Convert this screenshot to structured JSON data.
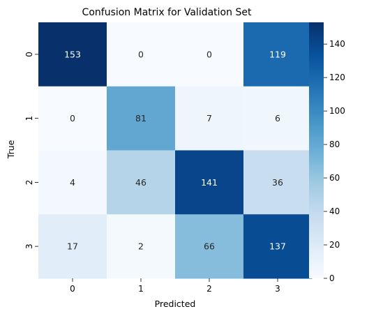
{
  "chart_data": {
    "type": "heatmap",
    "title": "Confusion Matrix for Validation Set",
    "xlabel": "Predicted",
    "ylabel": "True",
    "x_categories": [
      "0",
      "1",
      "2",
      "3"
    ],
    "y_categories": [
      "0",
      "1",
      "2",
      "3"
    ],
    "values": [
      [
        153,
        0,
        0,
        119
      ],
      [
        0,
        81,
        7,
        6
      ],
      [
        4,
        46,
        141,
        36
      ],
      [
        17,
        2,
        66,
        137
      ]
    ],
    "colormap": "Blues",
    "color_range": [
      0,
      153
    ],
    "colorbar": {
      "ticks": [
        0,
        20,
        40,
        60,
        80,
        100,
        120,
        140
      ],
      "placement": "right"
    }
  }
}
